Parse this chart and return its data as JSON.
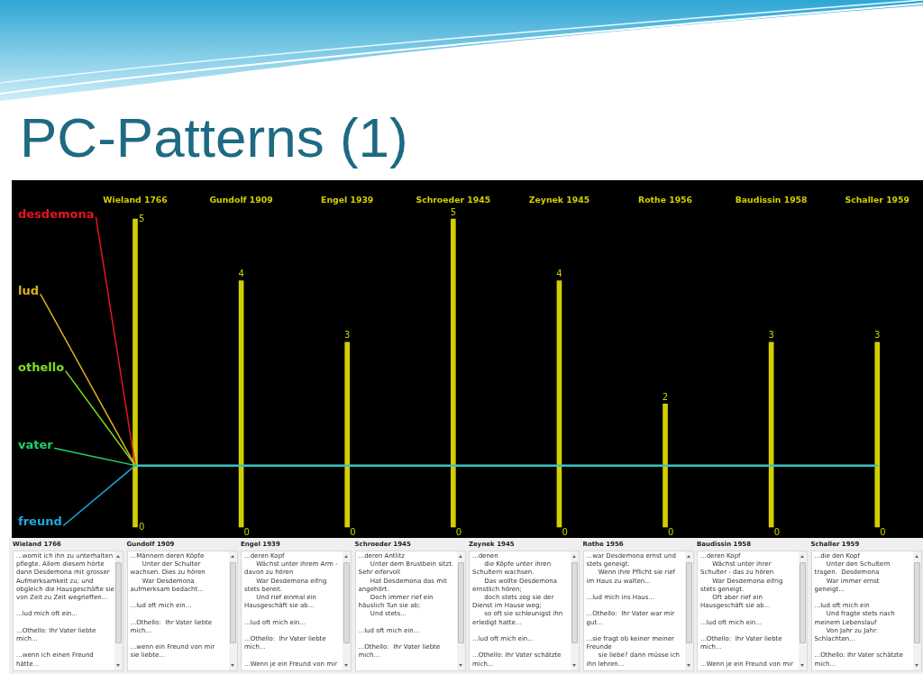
{
  "chart_data": {
    "type": "bar",
    "title": "PC-Patterns (1)",
    "categories": [
      "Wieland 1766",
      "Gundolf 1909",
      "Engel 1939",
      "Schroeder 1945",
      "Zeynek 1945",
      "Rothe 1956",
      "Baudissin 1958",
      "Schaller 1959"
    ],
    "series": [
      {
        "color": "#d2cf00",
        "values": [
          5,
          4,
          3,
          5,
          4,
          2,
          3,
          3
        ],
        "value_labels": [
          null,
          "4",
          "3",
          "5",
          "4",
          "2",
          "3",
          "3"
        ]
      },
      {
        "type": "line",
        "color": "#3cc4c0",
        "values": [
          1,
          1,
          1,
          1,
          1,
          1,
          1,
          1
        ]
      }
    ],
    "ylim": [
      0,
      5
    ],
    "yticks": [
      0,
      5
    ],
    "annotations": [
      {
        "text": "desdemona",
        "x": "Wieland 1766",
        "y": 1
      },
      {
        "text": "lud",
        "x": "Wieland 1766",
        "y": 1
      },
      {
        "text": "othello",
        "x": "Wieland 1766",
        "y": 1
      },
      {
        "text": "vater",
        "x": "Wieland 1766",
        "y": 1
      },
      {
        "text": "freund",
        "x": "Wieland 1766",
        "y": 1
      },
      {
        "text": "0",
        "x": "Gundolf 1909",
        "y": 0
      },
      {
        "text": "0",
        "x": "Engel 1939",
        "y": 0
      },
      {
        "text": "0",
        "x": "Schroeder 1945",
        "y": 0
      },
      {
        "text": "0",
        "x": "Zeynek 1945",
        "y": 0
      },
      {
        "text": "0",
        "x": "Rothe 1956",
        "y": 0
      },
      {
        "text": "0",
        "x": "Baudissin 1958",
        "y": 0
      },
      {
        "text": "0",
        "x": "Schaller 1959",
        "y": 0
      },
      "...womit ich ihn zu unterhalten\npflegte. Allem diesem hörte\ndann Desdemona mit grosser\nAufmerksamkeit zu; und\nobgleich die Hausgeschäfte sie\nvon Zeit zu Zeit wegrieffen...\n\n...lud mich oft ein...\n\n...Othello: Ihr Vater liebte\nmich...\n\n...wenn ich einen Freund\nhätte...",
      "...Männern deren Köpfe\n      Unter der Schulter\nwachsen. Dies zu hören\n      War Desdemona\naufmerksam bedacht...\n\n...lud oft mich ein...\n\n...Othello:  Ihr Vater liebte\nmich...\n\n...wenn ein Freund von mir\nsie liebte...",
      "...deren Kopf\n      Wächst unter ihrem Arm -\ndavon zu hören\n      War Desdemona eifrig\nstets bereit.\n      Und rief einmal ein\nHausgeschäft sie ab...\n\n...lud oft mich ein...\n\n...Othello:  Ihr Vater liebte\nmich...\n\n...Wenn je ein Freund von mir",
      "...deren Antlitz\n      Unter dem Brustbein sitzt.\nSehr eifervoll\n      Hat Desdemona das mit\nangehört.\n      Doch immer rief ein\nhäuslich Tun sie ab;\n      Und stets...\n\n...lud oft mich ein...\n\n...Othello:  Ihr Vater liebte\nmich...",
      "...denen\n      die Köpfe unter ihren\nSchultern wachsen.\n      Das wollte Desdemona\nernstlich hören;\n      doch stets zog sie der\nDienst im Hause weg;\n      so oft sie schleunigst ihn\nerledigt hatte...\n\n...lud oft mich ein...\n\n...Othello: Ihr Vater schätzte\nmich...",
      "...war Desdemona ernst und\nstets geneigt.\n      Wenn ihre Pflicht sie rief\nim Haus zu walten...\n\n...lud mich ins Haus...\n\n...Othello:  Ihr Vater war mir\ngut...\n\n...sie fragt ob keiner meiner\nFreunde\n      sie liebe? dann müsse ich\nihn lehren...",
      "...deren Kopf\n      Wächst unter ihrer\nSchulter - das zu hören\n      War Desdemona eifrig\nstets geneigt.\n      Oft aber rief ein\nHausgeschäft sie ab...\n\n...lud oft mich ein...\n\n...Othello:  Ihr Vater liebte\nmich...\n\n...Wenn je ein Freund von mir",
      "...die den Kopf\n      Unter den Schultern\ntragen.  Desdemona\n      War immer ernst\ngeneigt...\n\n...lud oft mich ein\n      Und fragte stets nach\nmeinem Lebenslauf\n      Von Jahr zu Jahr:\nSchlachten...\n\n...Othello: Ihr Vater schätzte\nmich..."
    ]
  }
}
